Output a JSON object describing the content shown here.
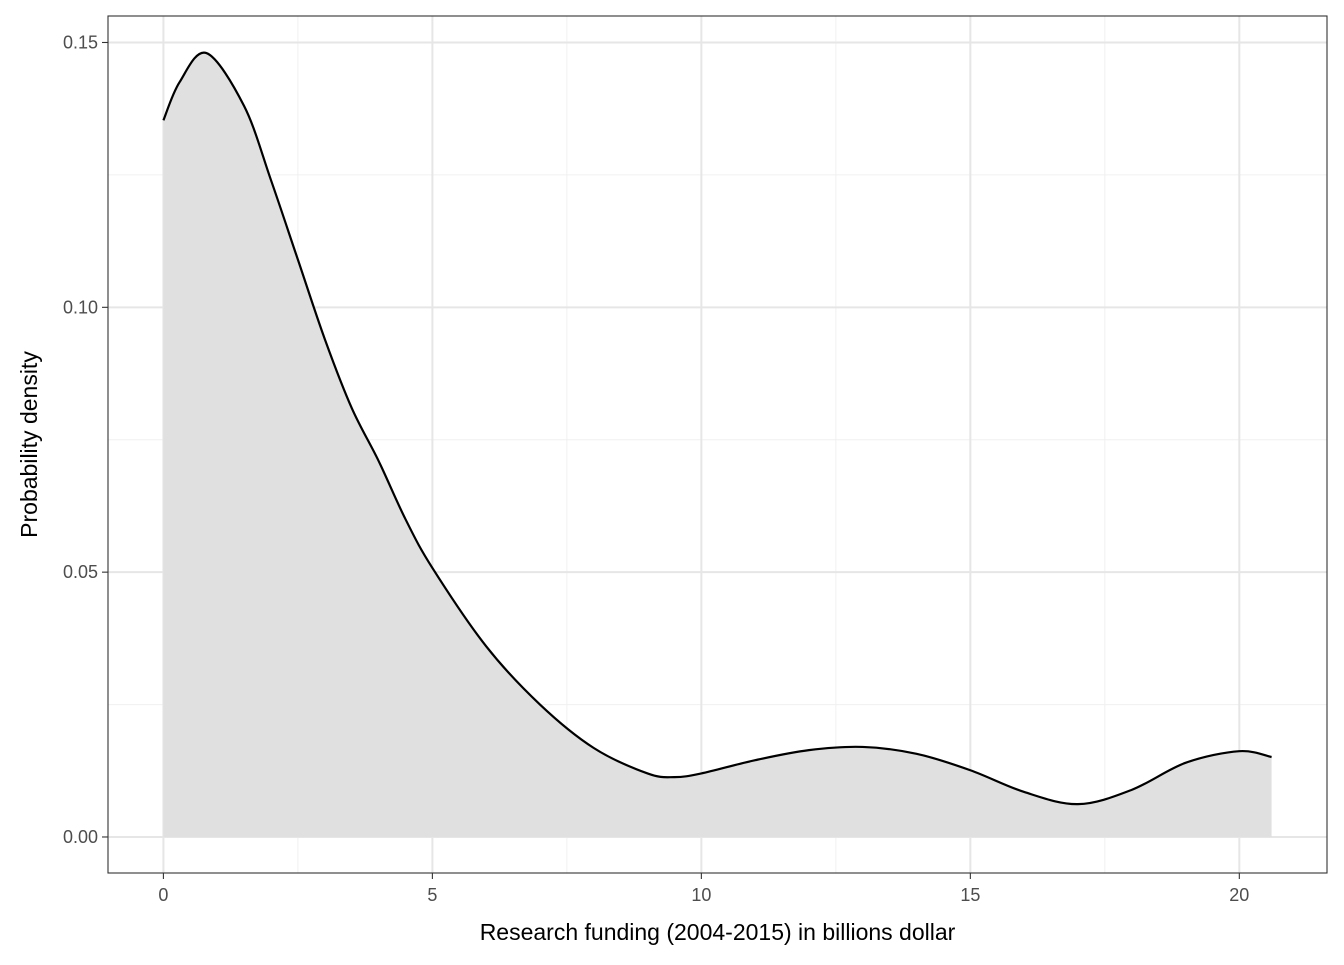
{
  "chart_data": {
    "type": "area",
    "title": "",
    "xlabel": "Research funding (2004-2015) in billions dollar",
    "ylabel": "Probability density",
    "xlim": [
      -1.03,
      21.63
    ],
    "ylim": [
      -0.0068,
      0.155
    ],
    "x_ticks": [
      0,
      5,
      10,
      15,
      20
    ],
    "x_tick_labels": [
      "0",
      "5",
      "10",
      "15",
      "20"
    ],
    "y_ticks": [
      0,
      0.05,
      0.1,
      0.15
    ],
    "y_tick_labels": [
      "0.00",
      "0.05",
      "0.10",
      "0.15"
    ],
    "grid": true,
    "fill_color": "#e0e0e0",
    "line_color": "#000000",
    "series": [
      {
        "x": [
          0,
          0.3,
          0.8,
          1.5,
          2,
          2.5,
          3,
          3.5,
          4,
          4.5,
          5,
          6,
          7,
          8,
          9,
          9.5,
          10,
          11,
          12,
          13,
          14,
          15,
          16,
          17,
          18,
          19,
          20,
          20.6
        ],
        "y": [
          0.1353,
          0.1425,
          0.148,
          0.138,
          0.124,
          0.109,
          0.094,
          0.081,
          0.071,
          0.06,
          0.0508,
          0.036,
          0.025,
          0.0168,
          0.012,
          0.0113,
          0.012,
          0.0145,
          0.0164,
          0.017,
          0.0157,
          0.0126,
          0.0085,
          0.0062,
          0.0089,
          0.014,
          0.0162,
          0.0151
        ]
      }
    ]
  }
}
